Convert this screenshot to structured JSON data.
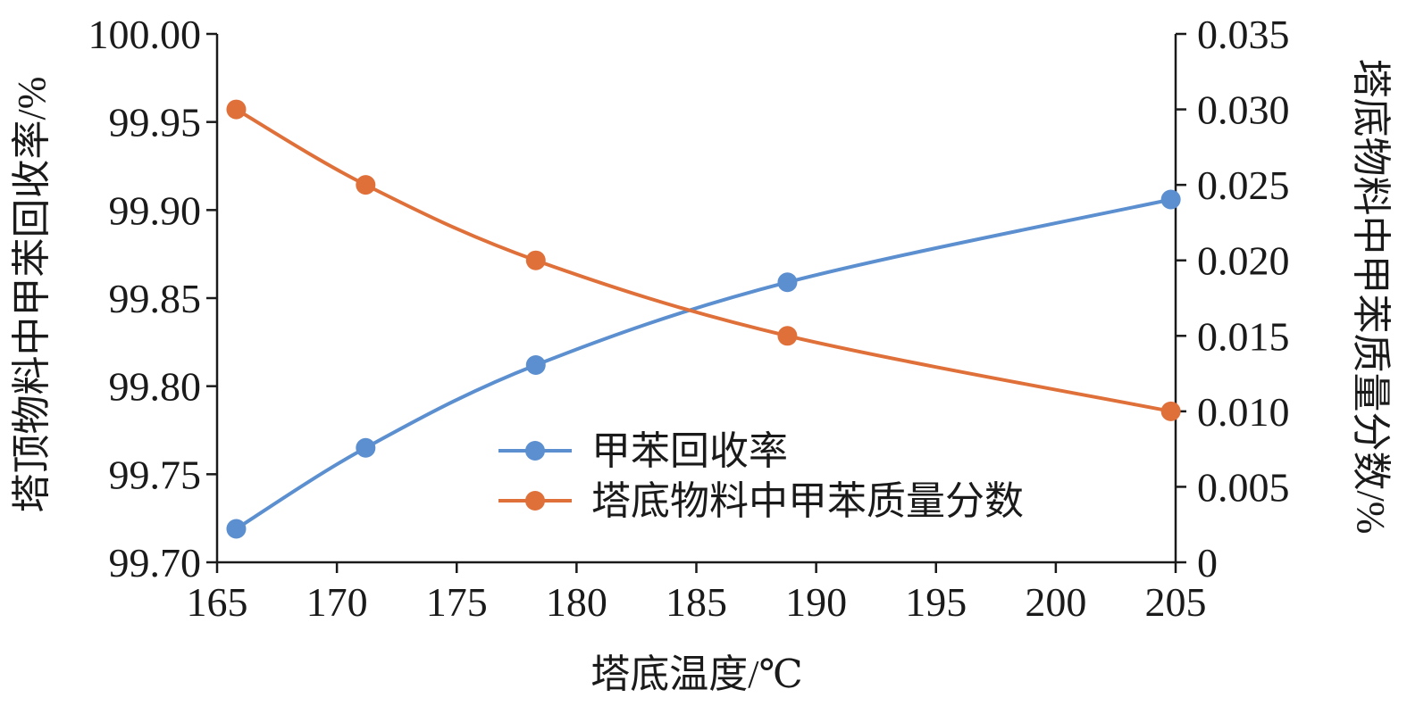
{
  "chart_data": {
    "type": "line",
    "title": "",
    "xlabel": "塔底温度/℃",
    "ylabel_left": "塔顶物料中甲苯回收率/%",
    "ylabel_right": "塔底物料中甲苯质量分数/%",
    "xlim": [
      165,
      205
    ],
    "ylim_left": [
      99.7,
      100.0
    ],
    "ylim_right": [
      0,
      0.035
    ],
    "x_ticks": [
      "165",
      "170",
      "175",
      "180",
      "185",
      "190",
      "195",
      "200",
      "205"
    ],
    "y_left_ticks": [
      "99.70",
      "99.75",
      "99.80",
      "99.85",
      "99.90",
      "99.95",
      "100.00"
    ],
    "y_right_ticks": [
      "0",
      "0.005",
      "0.010",
      "0.015",
      "0.020",
      "0.025",
      "0.030",
      "0.035"
    ],
    "grid": false,
    "legend_position": "center",
    "series": [
      {
        "name": "甲苯回收率",
        "axis": "left",
        "color": "#5b8fcf",
        "smooth": true,
        "x": [
          165.8,
          171.2,
          178.3,
          188.8,
          204.8
        ],
        "y": [
          99.719,
          99.765,
          99.812,
          99.859,
          99.906
        ]
      },
      {
        "name": "塔底物料中甲苯质量分数",
        "axis": "right",
        "color": "#e0703a",
        "smooth": true,
        "x": [
          165.8,
          171.2,
          178.3,
          188.8,
          204.8
        ],
        "y": [
          0.03,
          0.025,
          0.02,
          0.015,
          0.01
        ]
      }
    ]
  }
}
